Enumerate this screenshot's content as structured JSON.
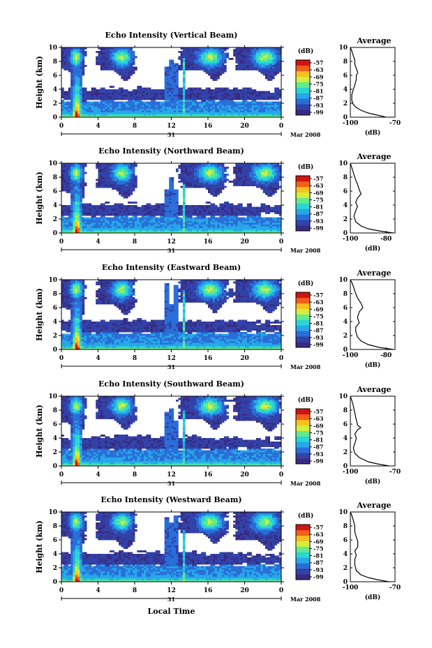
{
  "chart_data": {
    "type": "heatmap",
    "panels": [
      {
        "title": "Echo Intensity (Vertical Beam)",
        "profile_title": "Average",
        "profile_xticks": [
          "-100",
          "-70"
        ],
        "profile_xlim": [
          -100,
          -70
        ],
        "profile": [
          [
            -76,
            0
          ],
          [
            -82,
            0.3
          ],
          [
            -88,
            0.6
          ],
          [
            -93,
            1.0
          ],
          [
            -96,
            1.4
          ],
          [
            -98,
            1.8
          ],
          [
            -99,
            2.4
          ],
          [
            -99,
            3.2
          ],
          [
            -98,
            4.0
          ],
          [
            -97,
            4.6
          ],
          [
            -96,
            5.4
          ],
          [
            -96,
            6.0
          ],
          [
            -95,
            6.4
          ],
          [
            -96,
            7.0
          ],
          [
            -97,
            7.6
          ],
          [
            -97,
            8.2
          ],
          [
            -98,
            8.8
          ],
          [
            -99,
            9.5
          ],
          [
            -100,
            10
          ]
        ]
      },
      {
        "title": "Echo Intensity (Northward Beam)",
        "profile_title": "Average",
        "profile_xticks": [
          "-100",
          "-80"
        ],
        "profile_xlim": [
          -100,
          -75
        ],
        "profile": [
          [
            -76,
            0
          ],
          [
            -84,
            0.3
          ],
          [
            -90,
            0.6
          ],
          [
            -94,
            1.0
          ],
          [
            -97,
            1.6
          ],
          [
            -98,
            2.4
          ],
          [
            -97,
            3.2
          ],
          [
            -96,
            3.8
          ],
          [
            -97,
            4.4
          ],
          [
            -96,
            5.0
          ],
          [
            -94,
            5.6
          ],
          [
            -95,
            6.2
          ],
          [
            -96,
            7.0
          ],
          [
            -97,
            7.6
          ],
          [
            -98,
            8.4
          ],
          [
            -99,
            9.2
          ],
          [
            -100,
            10
          ]
        ]
      },
      {
        "title": "Echo Intensity (Eastward Beam)",
        "profile_title": "Average",
        "profile_xticks": [
          "-100",
          "-80"
        ],
        "profile_xlim": [
          -100,
          -75
        ],
        "profile": [
          [
            -76,
            0
          ],
          [
            -84,
            0.3
          ],
          [
            -90,
            0.7
          ],
          [
            -94,
            1.2
          ],
          [
            -96,
            1.8
          ],
          [
            -97,
            2.6
          ],
          [
            -97,
            3.2
          ],
          [
            -95,
            3.8
          ],
          [
            -96,
            4.6
          ],
          [
            -95,
            5.4
          ],
          [
            -93,
            6.0
          ],
          [
            -94,
            6.6
          ],
          [
            -96,
            7.4
          ],
          [
            -97,
            8.0
          ],
          [
            -98,
            8.8
          ],
          [
            -99,
            9.5
          ],
          [
            -100,
            10
          ]
        ]
      },
      {
        "title": "Echo Intensity (Southward Beam)",
        "profile_title": "Average",
        "profile_xticks": [
          "-100",
          "-70"
        ],
        "profile_xlim": [
          -100,
          -70
        ],
        "profile": [
          [
            -74,
            0
          ],
          [
            -82,
            0.3
          ],
          [
            -88,
            0.6
          ],
          [
            -94,
            1.2
          ],
          [
            -97,
            1.8
          ],
          [
            -98,
            2.6
          ],
          [
            -97,
            3.2
          ],
          [
            -96,
            4.0
          ],
          [
            -97,
            4.6
          ],
          [
            -95,
            5.2
          ],
          [
            -93,
            5.5
          ],
          [
            -95,
            5.8
          ],
          [
            -96,
            6.6
          ],
          [
            -97,
            7.6
          ],
          [
            -98,
            8.6
          ],
          [
            -99,
            9.4
          ],
          [
            -100,
            10
          ]
        ]
      },
      {
        "title": "Echo Intensity (Westward Beam)",
        "profile_title": "Average",
        "profile_xticks": [
          "-100",
          "-70"
        ],
        "profile_xlim": [
          -100,
          -70
        ],
        "profile": [
          [
            -74,
            0
          ],
          [
            -82,
            0.3
          ],
          [
            -88,
            0.6
          ],
          [
            -93,
            1.0
          ],
          [
            -96,
            1.6
          ],
          [
            -97,
            2.4
          ],
          [
            -97,
            3.2
          ],
          [
            -96,
            3.8
          ],
          [
            -97,
            4.4
          ],
          [
            -95,
            5.0
          ],
          [
            -95,
            5.8
          ],
          [
            -96,
            6.4
          ],
          [
            -97,
            7.2
          ],
          [
            -97,
            8.0
          ],
          [
            -98,
            8.8
          ],
          [
            -99,
            9.5
          ],
          [
            -100,
            10
          ]
        ]
      }
    ],
    "ylabel": "Height (km)",
    "ylim": [
      0,
      10
    ],
    "yticks": [
      "0",
      "2",
      "4",
      "6",
      "8",
      "10"
    ],
    "xlim": [
      0,
      24
    ],
    "xticks": [
      "0",
      "4",
      "8",
      "12",
      "16",
      "20",
      "0"
    ],
    "xlabel": "Local Time",
    "date_day": "31",
    "date_label": "Mar 2008",
    "colorbar": {
      "unit": "(dB)",
      "ticks": [
        "-57",
        "-63",
        "-69",
        "-75",
        "-81",
        "-87",
        "-93",
        "-99"
      ],
      "range": [
        -101,
        -55
      ]
    },
    "profile_xlabel": "(dB)",
    "profile_yticks": [
      "0",
      "2",
      "4",
      "6",
      "8",
      "10"
    ],
    "echo_features": {
      "rain_column_hours": [
        1.2,
        2.2
      ],
      "convective_streaks_hours": [
        11.5,
        12.0,
        12.5,
        13.4
      ],
      "upper_cells_hours": [
        [
          0,
          2.5
        ],
        [
          4,
          8
        ],
        [
          13,
          18
        ],
        [
          19,
          24
        ]
      ],
      "boundary_layer_top_km": 2.2
    }
  },
  "colors": {
    "scale": [
      "#3a2a80",
      "#3242a8",
      "#2a6ed8",
      "#26a8e8",
      "#2ad6d2",
      "#64ea8c",
      "#d4ee3a",
      "#f8c020",
      "#f06018",
      "#d01414"
    ]
  }
}
